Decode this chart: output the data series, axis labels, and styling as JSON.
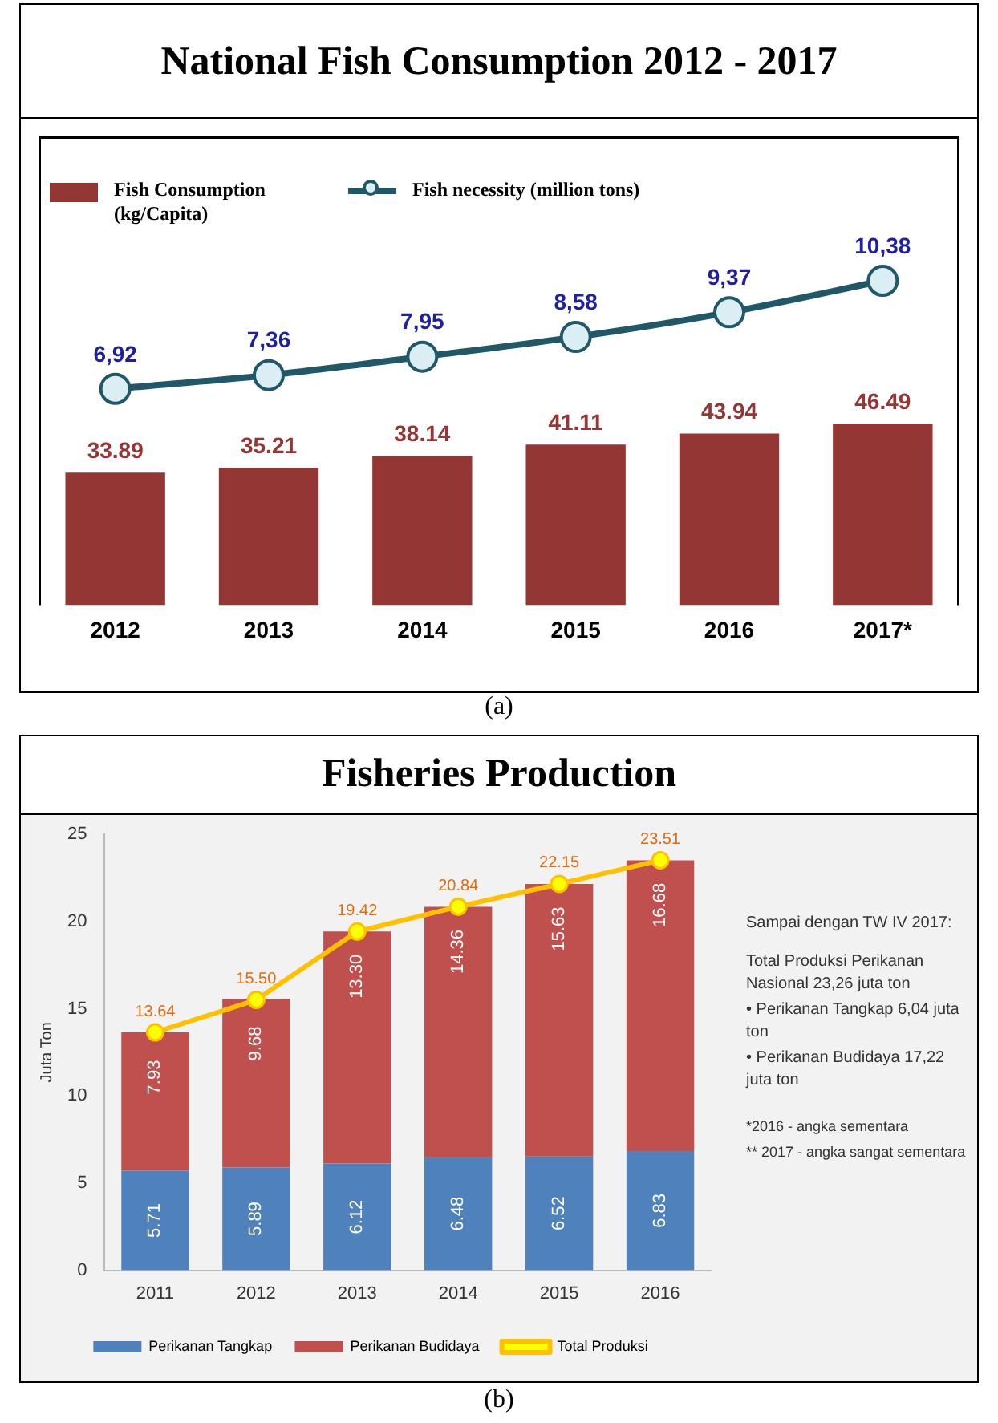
{
  "chart_data": [
    {
      "type": "bar",
      "title": "National Fish Consumption 2012 - 2017",
      "categories": [
        "2012",
        "2013",
        "2014",
        "2015",
        "2016",
        "2017*"
      ],
      "series": [
        {
          "name": "Fish Consumption (kg/Capita)",
          "color": "#943634",
          "values": [
            33.89,
            35.21,
            38.14,
            41.11,
            43.94,
            46.49
          ],
          "value_labels": [
            "33.89",
            "35.21",
            "38.14",
            "41.11",
            "43.94",
            "46.49"
          ]
        },
        {
          "name": "Fish necessity (million tons)",
          "type": "line",
          "axis": "y2",
          "color": "#215868",
          "values": [
            6.92,
            7.36,
            7.95,
            8.58,
            9.37,
            10.38
          ],
          "value_labels": [
            "6,92",
            "7,36",
            "7,95",
            "8,58",
            "9,37",
            "10,38"
          ]
        }
      ],
      "ylim": [
        0,
        120
      ],
      "y2lim": [
        0,
        15
      ],
      "tick_labels": "x",
      "legend": "top left",
      "marker": "circle",
      "grid": false,
      "annotations": [
        "(a)"
      ]
    },
    {
      "type": "bar",
      "title": "Fisheries Production",
      "ylabel": "Juta Ton",
      "categories": [
        "2011",
        "2012",
        "2013",
        "2014",
        "2015",
        "2016"
      ],
      "stacked": true,
      "series": [
        {
          "name": "Perikanan Tangkap",
          "color": "#4f81bd",
          "values": [
            5.71,
            5.89,
            6.12,
            6.48,
            6.52,
            6.83
          ],
          "value_labels": [
            "5.71",
            "5.89",
            "6.12",
            "6.48",
            "6.52",
            "6.83"
          ]
        },
        {
          "name": "Perikanan Budidaya",
          "color": "#c0504d",
          "values": [
            7.93,
            9.68,
            13.3,
            14.36,
            15.63,
            16.68
          ],
          "value_labels": [
            "7.93",
            "9.68",
            "13.30",
            "14.36",
            "15.63",
            "16.68"
          ]
        },
        {
          "name": "Total Produksi",
          "type": "line",
          "color": "#ffc000",
          "values": [
            13.64,
            15.5,
            19.42,
            20.84,
            22.15,
            23.51
          ],
          "value_labels": [
            "13.64",
            "15.50",
            "19.42",
            "20.84",
            "22.15",
            "23.51"
          ]
        }
      ],
      "ylim": [
        0,
        25
      ],
      "yticks": [
        0,
        5,
        10,
        15,
        20,
        25
      ],
      "grid": false,
      "legend": "bottom",
      "marker": "circle",
      "annotations": [
        "Sampai dengan TW IV 2017:",
        "Total Produksi Perikanan Nasional 23,26 juta ton",
        "• Perikanan Tangkap 6,04 juta ton",
        "• Perikanan Budidaya 17,22 juta ton",
        "*2016 - angka sementara",
        "** 2017 - angka sangat sementara",
        "(b)"
      ]
    }
  ]
}
